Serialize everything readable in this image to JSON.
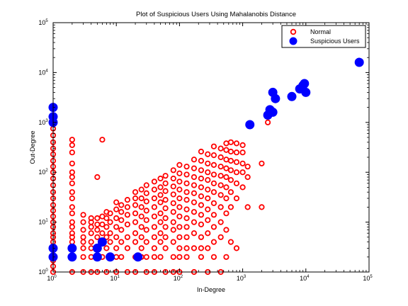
{
  "chart_data": {
    "type": "scatter",
    "title": "Plot of Suspicious Users Using Mahalanobis Distance",
    "xlabel": "In-Degree",
    "ylabel": "Out-Degree",
    "xscale": "log",
    "yscale": "log",
    "xlim": [
      1,
      100000
    ],
    "ylim": [
      1,
      100000
    ],
    "grid": false,
    "legend_position": "top-right",
    "x_ticks": [
      1,
      10,
      100,
      1000,
      10000,
      100000
    ],
    "y_ticks": [
      1,
      10,
      100,
      1000,
      10000,
      100000
    ],
    "series": [
      {
        "name": "Normal",
        "marker": "open-circle",
        "color": "#ff0000",
        "points": [
          [
            1,
            1
          ],
          [
            1,
            1.3
          ],
          [
            1,
            1.7
          ],
          [
            1,
            2.2
          ],
          [
            1,
            3
          ],
          [
            1,
            4
          ],
          [
            1,
            5
          ],
          [
            1,
            6
          ],
          [
            1,
            8
          ],
          [
            1,
            10
          ],
          [
            1,
            13
          ],
          [
            1,
            17
          ],
          [
            1,
            22
          ],
          [
            1,
            30
          ],
          [
            1,
            40
          ],
          [
            1,
            55
          ],
          [
            1,
            75
          ],
          [
            1,
            100
          ],
          [
            1,
            130
          ],
          [
            1,
            170
          ],
          [
            1,
            230
          ],
          [
            1,
            300
          ],
          [
            1,
            400
          ],
          [
            1,
            550
          ],
          [
            1,
            750
          ],
          [
            2,
            1
          ],
          [
            2,
            2
          ],
          [
            2,
            3
          ],
          [
            2,
            4
          ],
          [
            2,
            5
          ],
          [
            2,
            6
          ],
          [
            2,
            8
          ],
          [
            2,
            10
          ],
          [
            2,
            15
          ],
          [
            2,
            20
          ],
          [
            2,
            30
          ],
          [
            2,
            40
          ],
          [
            2,
            60
          ],
          [
            2,
            80
          ],
          [
            2,
            100
          ],
          [
            2,
            150
          ],
          [
            2,
            250
          ],
          [
            2,
            350
          ],
          [
            2,
            450
          ],
          [
            3,
            1
          ],
          [
            3,
            2
          ],
          [
            3,
            3
          ],
          [
            3,
            4
          ],
          [
            3,
            5
          ],
          [
            3,
            7
          ],
          [
            3,
            10
          ],
          [
            3,
            14
          ],
          [
            4,
            1
          ],
          [
            4,
            2
          ],
          [
            4,
            3
          ],
          [
            4,
            4
          ],
          [
            4,
            6
          ],
          [
            4,
            8
          ],
          [
            4,
            10
          ],
          [
            4,
            12
          ],
          [
            5,
            1
          ],
          [
            5,
            2
          ],
          [
            5,
            3
          ],
          [
            5,
            5
          ],
          [
            5,
            7
          ],
          [
            5,
            9
          ],
          [
            5,
            12
          ],
          [
            5,
            80
          ],
          [
            6,
            2
          ],
          [
            6,
            4
          ],
          [
            6,
            6
          ],
          [
            6,
            9
          ],
          [
            6,
            13
          ],
          [
            6,
            450
          ],
          [
            7,
            1
          ],
          [
            7,
            3
          ],
          [
            7,
            5
          ],
          [
            7,
            8
          ],
          [
            7,
            12
          ],
          [
            7,
            16
          ],
          [
            8,
            2
          ],
          [
            8,
            4
          ],
          [
            8,
            6
          ],
          [
            8,
            10
          ],
          [
            8,
            15
          ],
          [
            10,
            1
          ],
          [
            10,
            2
          ],
          [
            10,
            3
          ],
          [
            10,
            5
          ],
          [
            10,
            8
          ],
          [
            10,
            12
          ],
          [
            10,
            18
          ],
          [
            10,
            25
          ],
          [
            12,
            2
          ],
          [
            12,
            4
          ],
          [
            12,
            7
          ],
          [
            12,
            11
          ],
          [
            12,
            16
          ],
          [
            12,
            22
          ],
          [
            15,
            1
          ],
          [
            15,
            3
          ],
          [
            15,
            5
          ],
          [
            15,
            9
          ],
          [
            15,
            14
          ],
          [
            15,
            20
          ],
          [
            15,
            28
          ],
          [
            20,
            1
          ],
          [
            20,
            2
          ],
          [
            20,
            4
          ],
          [
            20,
            6
          ],
          [
            20,
            10
          ],
          [
            20,
            15
          ],
          [
            20,
            22
          ],
          [
            20,
            30
          ],
          [
            20,
            40
          ],
          [
            25,
            2
          ],
          [
            25,
            3
          ],
          [
            25,
            5
          ],
          [
            25,
            8
          ],
          [
            25,
            13
          ],
          [
            25,
            20
          ],
          [
            25,
            30
          ],
          [
            25,
            45
          ],
          [
            30,
            1
          ],
          [
            30,
            2
          ],
          [
            30,
            4
          ],
          [
            30,
            7
          ],
          [
            30,
            11
          ],
          [
            30,
            17
          ],
          [
            30,
            26
          ],
          [
            30,
            38
          ],
          [
            30,
            55
          ],
          [
            40,
            1
          ],
          [
            40,
            2
          ],
          [
            40,
            3
          ],
          [
            40,
            5
          ],
          [
            40,
            8
          ],
          [
            40,
            13
          ],
          [
            40,
            20
          ],
          [
            40,
            30
          ],
          [
            40,
            45
          ],
          [
            40,
            65
          ],
          [
            50,
            2
          ],
          [
            50,
            4
          ],
          [
            50,
            6
          ],
          [
            50,
            10
          ],
          [
            50,
            15
          ],
          [
            50,
            25
          ],
          [
            50,
            35
          ],
          [
            50,
            50
          ],
          [
            50,
            75
          ],
          [
            60,
            1
          ],
          [
            60,
            3
          ],
          [
            60,
            5
          ],
          [
            60,
            8
          ],
          [
            60,
            12
          ],
          [
            60,
            19
          ],
          [
            60,
            28
          ],
          [
            60,
            42
          ],
          [
            60,
            60
          ],
          [
            60,
            85
          ],
          [
            80,
            1
          ],
          [
            80,
            2
          ],
          [
            80,
            4
          ],
          [
            80,
            7
          ],
          [
            80,
            10
          ],
          [
            80,
            16
          ],
          [
            80,
            24
          ],
          [
            80,
            36
          ],
          [
            80,
            52
          ],
          [
            80,
            75
          ],
          [
            80,
            110
          ],
          [
            100,
            1
          ],
          [
            100,
            2
          ],
          [
            100,
            3
          ],
          [
            100,
            5
          ],
          [
            100,
            8
          ],
          [
            100,
            13
          ],
          [
            100,
            20
          ],
          [
            100,
            30
          ],
          [
            100,
            45
          ],
          [
            100,
            65
          ],
          [
            100,
            95
          ],
          [
            100,
            140
          ],
          [
            130,
            2
          ],
          [
            130,
            3
          ],
          [
            130,
            5
          ],
          [
            130,
            8
          ],
          [
            130,
            12
          ],
          [
            130,
            18
          ],
          [
            130,
            28
          ],
          [
            130,
            40
          ],
          [
            130,
            60
          ],
          [
            130,
            90
          ],
          [
            130,
            130
          ],
          [
            170,
            1
          ],
          [
            170,
            3
          ],
          [
            170,
            6
          ],
          [
            170,
            10
          ],
          [
            170,
            16
          ],
          [
            170,
            25
          ],
          [
            170,
            38
          ],
          [
            170,
            55
          ],
          [
            170,
            80
          ],
          [
            170,
            120
          ],
          [
            170,
            180
          ],
          [
            220,
            2
          ],
          [
            220,
            3
          ],
          [
            220,
            5
          ],
          [
            220,
            9
          ],
          [
            220,
            14
          ],
          [
            220,
            22
          ],
          [
            220,
            33
          ],
          [
            220,
            50
          ],
          [
            220,
            75
          ],
          [
            220,
            110
          ],
          [
            220,
            170
          ],
          [
            220,
            260
          ],
          [
            280,
            1
          ],
          [
            280,
            3
          ],
          [
            280,
            6
          ],
          [
            280,
            11
          ],
          [
            280,
            18
          ],
          [
            280,
            30
          ],
          [
            280,
            45
          ],
          [
            280,
            70
          ],
          [
            280,
            100
          ],
          [
            280,
            150
          ],
          [
            280,
            230
          ],
          [
            350,
            2
          ],
          [
            350,
            4
          ],
          [
            350,
            8
          ],
          [
            350,
            14
          ],
          [
            350,
            24
          ],
          [
            350,
            40
          ],
          [
            350,
            60
          ],
          [
            350,
            90
          ],
          [
            350,
            140
          ],
          [
            350,
            220
          ],
          [
            350,
            330
          ],
          [
            450,
            1
          ],
          [
            450,
            5
          ],
          [
            450,
            10
          ],
          [
            450,
            20
          ],
          [
            450,
            35
          ],
          [
            450,
            55
          ],
          [
            450,
            85
          ],
          [
            450,
            130
          ],
          [
            450,
            200
          ],
          [
            450,
            300
          ],
          [
            550,
            2
          ],
          [
            550,
            7
          ],
          [
            550,
            15
          ],
          [
            550,
            30
          ],
          [
            550,
            50
          ],
          [
            550,
            80
          ],
          [
            550,
            120
          ],
          [
            550,
            180
          ],
          [
            550,
            280
          ],
          [
            550,
            380
          ],
          [
            650,
            4
          ],
          [
            650,
            20
          ],
          [
            650,
            40
          ],
          [
            650,
            70
          ],
          [
            650,
            110
          ],
          [
            650,
            170
          ],
          [
            650,
            260
          ],
          [
            650,
            400
          ],
          [
            800,
            3
          ],
          [
            800,
            30
          ],
          [
            800,
            60
          ],
          [
            800,
            100
          ],
          [
            800,
            160
          ],
          [
            800,
            250
          ],
          [
            800,
            380
          ],
          [
            1000,
            50
          ],
          [
            1000,
            100
          ],
          [
            1000,
            150
          ],
          [
            1000,
            250
          ],
          [
            1000,
            350
          ],
          [
            1200,
            80
          ],
          [
            1200,
            130
          ],
          [
            1200,
            20
          ],
          [
            2000,
            150
          ],
          [
            2000,
            20
          ],
          [
            2500,
            1000
          ]
        ]
      },
      {
        "name": "Suspicious Users",
        "marker": "filled-circle",
        "color": "#0000ff",
        "points": [
          [
            1,
            2
          ],
          [
            1,
            3
          ],
          [
            1,
            1000
          ],
          [
            1,
            1300
          ],
          [
            1,
            2000
          ],
          [
            2,
            2
          ],
          [
            2,
            3
          ],
          [
            5,
            2
          ],
          [
            5,
            3
          ],
          [
            6,
            4
          ],
          [
            8,
            2
          ],
          [
            22,
            2
          ],
          [
            1300,
            900
          ],
          [
            2500,
            1400
          ],
          [
            2700,
            1800
          ],
          [
            3000,
            4000
          ],
          [
            3000,
            1600
          ],
          [
            3300,
            3000
          ],
          [
            6000,
            3300
          ],
          [
            8000,
            4700
          ],
          [
            9000,
            5500
          ],
          [
            9500,
            6000
          ],
          [
            10000,
            4000
          ],
          [
            70000,
            16000
          ]
        ]
      }
    ]
  }
}
